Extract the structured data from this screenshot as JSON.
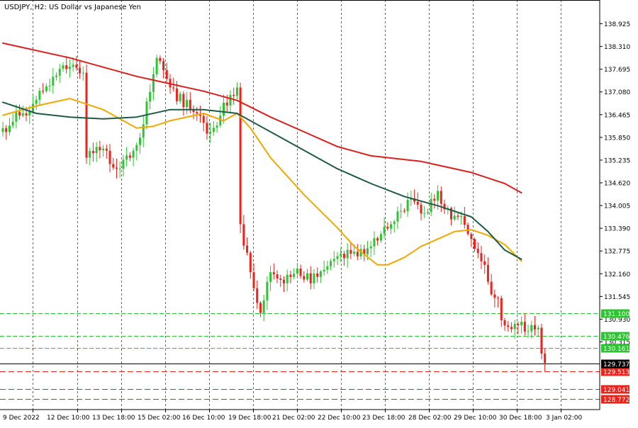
{
  "colors": {
    "background": "#ffffff",
    "candle_up": "#2cc431",
    "candle_down": "#e8241c",
    "sma_fast": "#f2a800",
    "sma_mid": "#1f5a47",
    "sma_slow": "#d8201e",
    "support_line": "#2cc431",
    "resistance_line": "#e8241c",
    "price_line": "#000000"
  },
  "chart_data": {
    "type": "candlestick",
    "title": "USDJPY, H2:  US Dollar vs Japanese Yen",
    "symbol": "USDJPY",
    "timeframe": "H2",
    "description": "US Dollar vs Japanese Yen",
    "ylim": [
      128.6,
      139.35
    ],
    "y_ticks": [
      "138.925",
      "138.310",
      "137.695",
      "137.080",
      "136.465",
      "135.850",
      "135.235",
      "134.620",
      "134.005",
      "133.390",
      "132.775",
      "132.160",
      "131.545",
      "130.930",
      "130.315"
    ],
    "x_ticks": [
      "9 Dec 2022",
      "12 Dec 10:00",
      "13 Dec 18:00",
      "15 Dec 02:00",
      "16 Dec 10:00",
      "19 Dec 18:00",
      "21 Dec 02:00",
      "22 Dec 10:00",
      "23 Dec 18:00",
      "28 Dec 02:00",
      "29 Dec 10:00",
      "30 Dec 18:00",
      "3 Jan 02:00"
    ],
    "grid": "vertical dashed",
    "current_price": "129.737",
    "levels": [
      {
        "value": "131.100",
        "kind": "support"
      },
      {
        "value": "130.476",
        "kind": "support"
      },
      {
        "value": "130.161",
        "kind": "support"
      },
      {
        "value": "129.513",
        "kind": "resistance"
      },
      {
        "value": "129.041",
        "kind": "resistance"
      },
      {
        "value": "128.772",
        "kind": "resistance"
      }
    ],
    "anchors": [
      {
        "i": 0,
        "c": 136.1
      },
      {
        "i": 6,
        "c": 136.5
      },
      {
        "i": 12,
        "c": 137.1
      },
      {
        "i": 18,
        "c": 137.8
      },
      {
        "i": 24,
        "c": 137.6
      },
      {
        "i": 25,
        "c": 135.3
      },
      {
        "i": 29,
        "c": 135.5
      },
      {
        "i": 35,
        "c": 135.0
      },
      {
        "i": 38,
        "c": 135.3
      },
      {
        "i": 42,
        "c": 136.2
      },
      {
        "i": 46,
        "c": 138.0
      },
      {
        "i": 50,
        "c": 137.2
      },
      {
        "i": 56,
        "c": 136.6
      },
      {
        "i": 62,
        "c": 136.0
      },
      {
        "i": 68,
        "c": 137.0
      },
      {
        "i": 70,
        "c": 137.2
      },
      {
        "i": 71,
        "c": 133.5
      },
      {
        "i": 74,
        "c": 132.2
      },
      {
        "i": 77,
        "c": 131.1
      },
      {
        "i": 80,
        "c": 132.2
      },
      {
        "i": 84,
        "c": 131.9
      },
      {
        "i": 88,
        "c": 132.3
      },
      {
        "i": 92,
        "c": 131.9
      },
      {
        "i": 98,
        "c": 132.5
      },
      {
        "i": 104,
        "c": 132.7
      },
      {
        "i": 110,
        "c": 132.9
      },
      {
        "i": 116,
        "c": 133.5
      },
      {
        "i": 122,
        "c": 134.2
      },
      {
        "i": 126,
        "c": 133.8
      },
      {
        "i": 130,
        "c": 134.4
      },
      {
        "i": 132,
        "c": 133.9
      },
      {
        "i": 136,
        "c": 133.7
      },
      {
        "i": 140,
        "c": 133.1
      },
      {
        "i": 144,
        "c": 132.4
      },
      {
        "i": 146,
        "c": 131.6
      },
      {
        "i": 148,
        "c": 131.5
      },
      {
        "i": 149,
        "c": 130.9
      },
      {
        "i": 153,
        "c": 130.8
      },
      {
        "i": 157,
        "c": 130.6
      },
      {
        "i": 160,
        "c": 130.7
      },
      {
        "i": 161,
        "c": 130.0
      },
      {
        "i": 162,
        "c": 129.74
      }
    ],
    "series": [
      {
        "name": "",
        "role": "sma-fast",
        "color": "#f2a800",
        "points": [
          [
            0,
            136.45
          ],
          [
            10,
            136.7
          ],
          [
            20,
            136.9
          ],
          [
            30,
            136.6
          ],
          [
            40,
            136.1
          ],
          [
            45,
            136.15
          ],
          [
            50,
            136.3
          ],
          [
            60,
            136.5
          ],
          [
            66,
            136.3
          ],
          [
            70,
            136.5
          ],
          [
            74,
            136.1
          ],
          [
            80,
            135.3
          ],
          [
            90,
            134.3
          ],
          [
            100,
            133.4
          ],
          [
            105,
            132.9
          ],
          [
            112,
            132.4
          ],
          [
            115,
            132.4
          ],
          [
            120,
            132.6
          ],
          [
            125,
            132.9
          ],
          [
            130,
            133.1
          ],
          [
            135,
            133.3
          ],
          [
            140,
            133.35
          ],
          [
            145,
            133.2
          ],
          [
            150,
            132.95
          ],
          [
            155,
            132.5
          ]
        ]
      },
      {
        "name": "",
        "role": "sma-mid",
        "color": "#1f5a47",
        "points": [
          [
            0,
            136.8
          ],
          [
            10,
            136.5
          ],
          [
            20,
            136.4
          ],
          [
            30,
            136.35
          ],
          [
            40,
            136.4
          ],
          [
            50,
            136.6
          ],
          [
            60,
            136.6
          ],
          [
            70,
            136.5
          ],
          [
            80,
            136.0
          ],
          [
            90,
            135.5
          ],
          [
            100,
            135.0
          ],
          [
            110,
            134.6
          ],
          [
            120,
            134.25
          ],
          [
            130,
            134.0
          ],
          [
            140,
            133.7
          ],
          [
            145,
            133.3
          ],
          [
            150,
            132.8
          ],
          [
            155,
            132.55
          ]
        ]
      },
      {
        "name": "",
        "role": "sma-slow",
        "color": "#d8201e",
        "points": [
          [
            0,
            138.4
          ],
          [
            20,
            138.0
          ],
          [
            40,
            137.5
          ],
          [
            60,
            137.1
          ],
          [
            70,
            136.85
          ],
          [
            80,
            136.4
          ],
          [
            90,
            136.0
          ],
          [
            100,
            135.6
          ],
          [
            110,
            135.35
          ],
          [
            120,
            135.25
          ],
          [
            125,
            135.2
          ],
          [
            130,
            135.1
          ],
          [
            140,
            134.9
          ],
          [
            150,
            134.6
          ],
          [
            155,
            134.35
          ]
        ]
      }
    ]
  }
}
